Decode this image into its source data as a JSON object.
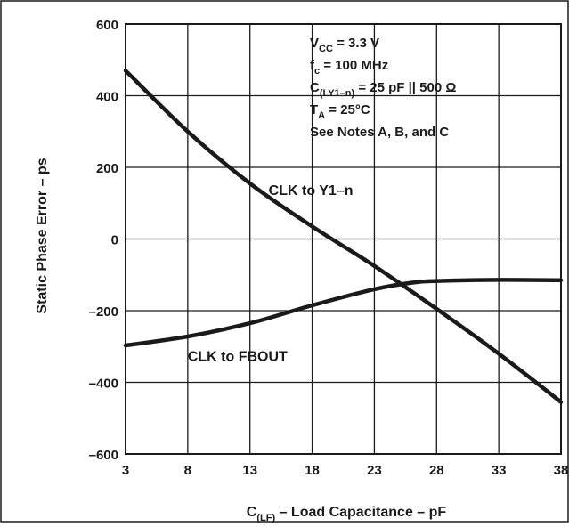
{
  "chart_data": {
    "type": "line",
    "xlabel": {
      "prefix": "C",
      "sub": "(LF)",
      "rest": " – Load Capacitance – pF"
    },
    "ylabel": "Static Phase Error – ps",
    "xlim": [
      3,
      38
    ],
    "ylim": [
      -600,
      600
    ],
    "xticks": [
      "3",
      "8",
      "13",
      "18",
      "23",
      "28",
      "33",
      "38"
    ],
    "yticks": [
      "600",
      "400",
      "200",
      "0",
      "–200",
      "–400",
      "–600"
    ],
    "grid": true,
    "line_color": "#1a1a1a",
    "annotations": [
      {
        "pre": "V",
        "sub": "CC",
        "post": " = 3.3 V"
      },
      {
        "pre": "f",
        "sub": "c",
        "post": " = 100 MHz"
      },
      {
        "pre": "C",
        "sub": "(LY1–n)",
        "post": " = 25 pF || 500 Ω"
      },
      {
        "pre": "T",
        "sub": "A",
        "post": " = 25°C"
      },
      {
        "pre": "See Notes A, B, and C",
        "sub": "",
        "post": ""
      }
    ],
    "series": [
      {
        "name": "CLK to Y1–n",
        "x": [
          3,
          8,
          13,
          18,
          23,
          28,
          33,
          38
        ],
        "y": [
          470,
          300,
          155,
          35,
          -75,
          -195,
          -320,
          -455
        ]
      },
      {
        "name": "CLK to FBOUT",
        "x": [
          3,
          8,
          13,
          18,
          23,
          26,
          28,
          33,
          38
        ],
        "y": [
          -297,
          -272,
          -235,
          -185,
          -140,
          -122,
          -117,
          -114,
          -115
        ]
      }
    ]
  }
}
